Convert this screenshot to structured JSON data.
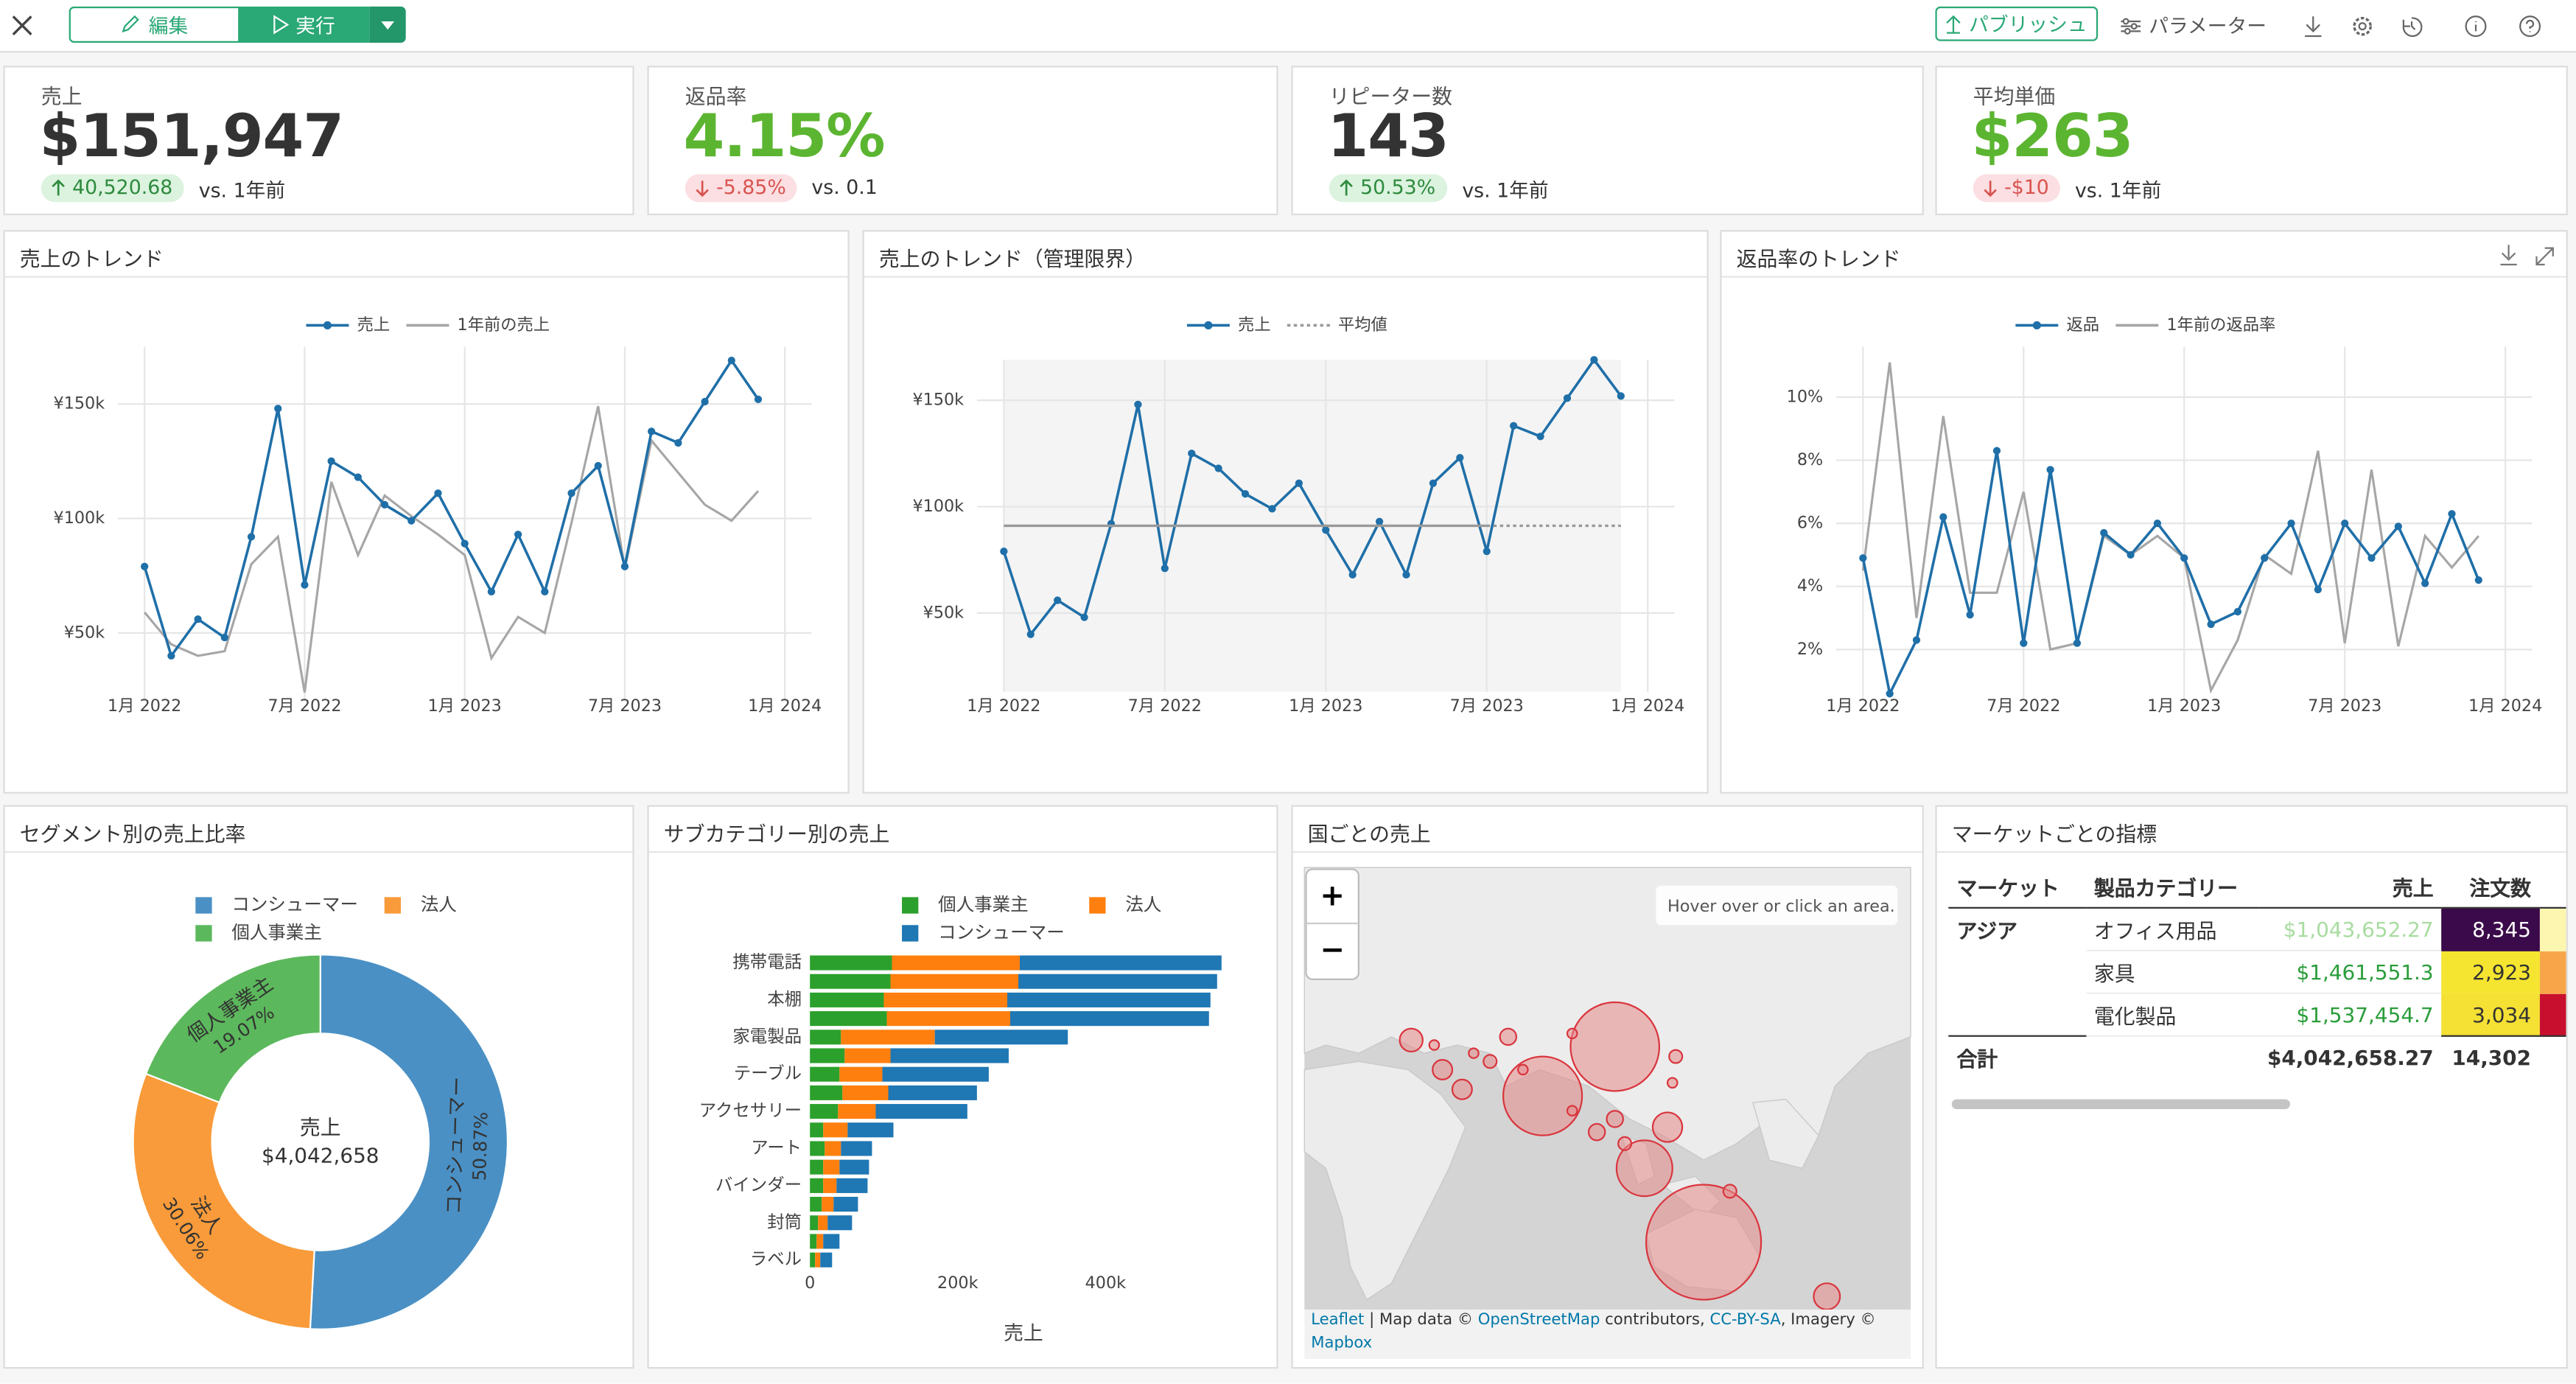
{
  "toolbar": {
    "edit": "編集",
    "run": "実行",
    "publish": "パブリッシュ",
    "parameters": "パラメーター"
  },
  "kpis": [
    {
      "title": "売上",
      "value": "$151,947",
      "change": "40,520.68",
      "direction": "up",
      "comparison": "vs. 1年前",
      "color": "#333333"
    },
    {
      "title": "返品率",
      "value": "4.15%",
      "change": "-5.85%",
      "direction": "down",
      "comparison": "vs. 0.1",
      "color": "#5cb531"
    },
    {
      "title": "リピーター数",
      "value": "143",
      "change": "50.53%",
      "direction": "up",
      "comparison": "vs. 1年前",
      "color": "#333333"
    },
    {
      "title": "平均単価",
      "value": "$263",
      "change": "-$10",
      "direction": "down",
      "comparison": "vs. 1年前",
      "color": "#5cb531"
    }
  ],
  "chart_data": [
    {
      "type": "line",
      "title": "売上のトレンド",
      "x": [
        "2022-01",
        "2022-02",
        "2022-03",
        "2022-04",
        "2022-05",
        "2022-06",
        "2022-07",
        "2022-08",
        "2022-09",
        "2022-10",
        "2022-11",
        "2022-12",
        "2023-01",
        "2023-02",
        "2023-03",
        "2023-04",
        "2023-05",
        "2023-06",
        "2023-07",
        "2023-08",
        "2023-09",
        "2023-10",
        "2023-11",
        "2023-12"
      ],
      "xlim": [
        "2021-12",
        "2024-02"
      ],
      "xticks": [
        {
          "value": "2022-01",
          "label": "1月 2022"
        },
        {
          "value": "2022-07",
          "label": "7月 2022"
        },
        {
          "value": "2023-01",
          "label": "1月 2023"
        },
        {
          "value": "2023-07",
          "label": "7月 2023"
        },
        {
          "value": "2024-01",
          "label": "1月 2024"
        }
      ],
      "ylim": [
        20000,
        175000
      ],
      "yticks": [
        {
          "value": 50000,
          "label": "¥50k"
        },
        {
          "value": 100000,
          "label": "¥100k"
        },
        {
          "value": 150000,
          "label": "¥150k"
        }
      ],
      "grid": true,
      "legend": "top",
      "series": [
        {
          "name": "売上",
          "color": "#1f6fa8",
          "markers": true,
          "values": [
            79000,
            40000,
            56000,
            48000,
            92000,
            148000,
            71000,
            125000,
            118000,
            106000,
            99000,
            111000,
            89000,
            68000,
            93000,
            68000,
            111000,
            123000,
            79000,
            138000,
            133000,
            151000,
            169000,
            152000
          ]
        },
        {
          "name": "1年前の売上",
          "color": "#a6a6a6",
          "markers": false,
          "values": [
            59000,
            45000,
            40000,
            42000,
            80000,
            92000,
            24000,
            116000,
            84000,
            110000,
            101000,
            93000,
            84000,
            39000,
            57000,
            50000,
            98000,
            149000,
            78000,
            134000,
            120000,
            106000,
            99000,
            112000
          ]
        }
      ]
    },
    {
      "type": "line",
      "title": "売上のトレンド（管理限界）",
      "x": [
        "2022-01",
        "2022-02",
        "2022-03",
        "2022-04",
        "2022-05",
        "2022-06",
        "2022-07",
        "2022-08",
        "2022-09",
        "2022-10",
        "2022-11",
        "2022-12",
        "2023-01",
        "2023-02",
        "2023-03",
        "2023-04",
        "2023-05",
        "2023-06",
        "2023-07",
        "2023-08",
        "2023-09",
        "2023-10",
        "2023-11",
        "2023-12"
      ],
      "xlim": [
        "2021-12",
        "2024-02"
      ],
      "xticks": [
        {
          "value": "2022-01",
          "label": "1月 2022"
        },
        {
          "value": "2022-07",
          "label": "7月 2022"
        },
        {
          "value": "2023-01",
          "label": "1月 2023"
        },
        {
          "value": "2023-07",
          "label": "7月 2023"
        },
        {
          "value": "2024-01",
          "label": "1月 2024"
        }
      ],
      "ylim": [
        13000,
        169000
      ],
      "yticks": [
        {
          "value": 50000,
          "label": "¥50k"
        },
        {
          "value": 100000,
          "label": "¥100k"
        },
        {
          "value": 150000,
          "label": "¥150k"
        }
      ],
      "grid": true,
      "legend": "top",
      "plot_background": "#f4f4f4",
      "series": [
        {
          "name": "売上",
          "color": "#1f6fa8",
          "markers": true,
          "values": [
            79000,
            40000,
            56000,
            48000,
            92000,
            148000,
            71000,
            125000,
            118000,
            106000,
            99000,
            111000,
            89000,
            68000,
            93000,
            68000,
            111000,
            123000,
            79000,
            138000,
            133000,
            151000,
            169000,
            152000
          ]
        }
      ],
      "mean_line": {
        "name": "平均値",
        "value": 91000,
        "color": "#999999"
      }
    },
    {
      "type": "line",
      "title": "返品率のトレンド",
      "x": [
        "2022-01",
        "2022-02",
        "2022-03",
        "2022-04",
        "2022-05",
        "2022-06",
        "2022-07",
        "2022-08",
        "2022-09",
        "2022-10",
        "2022-11",
        "2022-12",
        "2023-01",
        "2023-02",
        "2023-03",
        "2023-04",
        "2023-05",
        "2023-06",
        "2023-07",
        "2023-08",
        "2023-09",
        "2023-10",
        "2023-11",
        "2023-12"
      ],
      "xlim": [
        "2021-12",
        "2024-02"
      ],
      "xticks": [
        {
          "value": "2022-01",
          "label": "1月 2022"
        },
        {
          "value": "2022-07",
          "label": "7月 2022"
        },
        {
          "value": "2023-01",
          "label": "1月 2023"
        },
        {
          "value": "2023-07",
          "label": "7月 2023"
        },
        {
          "value": "2024-01",
          "label": "1月 2024"
        }
      ],
      "ylim": [
        0.4,
        11.6
      ],
      "yticks": [
        {
          "value": 2,
          "label": "2%"
        },
        {
          "value": 4,
          "label": "4%"
        },
        {
          "value": 6,
          "label": "6%"
        },
        {
          "value": 8,
          "label": "8%"
        },
        {
          "value": 10,
          "label": "10%"
        }
      ],
      "grid": true,
      "legend": "top",
      "series": [
        {
          "name": "返品",
          "color": "#1f6fa8",
          "markers": true,
          "values": [
            4.9,
            0.6,
            2.3,
            6.2,
            3.1,
            8.3,
            2.2,
            7.7,
            2.2,
            5.7,
            5.0,
            6.0,
            4.9,
            2.8,
            3.2,
            4.9,
            6.0,
            3.9,
            6.0,
            4.9,
            5.9,
            4.1,
            6.3,
            4.2
          ]
        },
        {
          "name": "1年前の返品率",
          "color": "#a6a6a6",
          "markers": false,
          "values": [
            4.5,
            11.1,
            3.0,
            9.4,
            3.8,
            3.8,
            7.0,
            2.0,
            2.2,
            5.6,
            5.0,
            5.6,
            4.9,
            0.7,
            2.3,
            5.0,
            4.4,
            8.3,
            2.2,
            7.7,
            2.1,
            5.6,
            4.6,
            5.6
          ]
        }
      ]
    },
    {
      "type": "pie",
      "title": "セグメント別の売上比率",
      "donut": true,
      "categories": [
        "コンシューマー",
        "法人",
        "個人事業主"
      ],
      "values": [
        50.87,
        30.06,
        19.07
      ],
      "value_labels": [
        "50.87%",
        "30.06%",
        "19.07%"
      ],
      "colors": [
        "#4a90c4",
        "#f99b3a",
        "#5cb85c"
      ],
      "legend": "top",
      "center_label": "売上",
      "center_value": "$4,042,658"
    },
    {
      "type": "bar",
      "orientation": "horizontal",
      "stacked": true,
      "title": "サブカテゴリー別の売上",
      "categories": [
        "携帯電話",
        null,
        "本棚",
        null,
        "家電製品",
        null,
        "テーブル",
        null,
        "アクセサリー",
        null,
        "アート",
        null,
        "バインダー",
        null,
        "封筒",
        null,
        "ラベル"
      ],
      "series": [
        {
          "name": "個人事業主",
          "color": "#2ca02c",
          "values": [
            111000,
            109000,
            100000,
            104000,
            42000,
            47000,
            40000,
            44000,
            38000,
            18000,
            20000,
            18000,
            18000,
            16000,
            11000,
            9000,
            7000
          ]
        },
        {
          "name": "法人",
          "color": "#ff7f0e",
          "values": [
            173000,
            173000,
            167000,
            167000,
            127000,
            62000,
            58000,
            62000,
            51000,
            33000,
            22000,
            22000,
            18000,
            16000,
            13000,
            9000,
            7000
          ]
        },
        {
          "name": "コンシューマー",
          "color": "#1f77b4",
          "values": [
            273000,
            269000,
            275000,
            269000,
            180000,
            160000,
            144000,
            120000,
            124000,
            62000,
            42000,
            40000,
            42000,
            33000,
            33000,
            22000,
            16000
          ]
        }
      ],
      "xlim": [
        0,
        578000
      ],
      "xticks": [
        0,
        {
          "value": 200000,
          "label": "200k"
        },
        {
          "value": 400000,
          "label": "400k"
        }
      ],
      "xlabel": "売上",
      "legend": "top"
    }
  ],
  "map": {
    "title": "国ごとの売上",
    "zoom_in": "+",
    "zoom_out": "−",
    "hint": "Hover over or click an area.",
    "attribution": {
      "leaflet": "Leaflet",
      "text1": " | Map data © ",
      "osm": "OpenStreetMap",
      "text2": " contributors, ",
      "license": "CC-BY-SA",
      "text3": ", Imagery © ",
      "mapbox": "Mapbox"
    }
  },
  "table": {
    "title": "マーケットごとの指標",
    "columns": [
      "マーケット",
      "製品カテゴリー",
      "売上",
      "注文数"
    ],
    "rows": [
      [
        "アジア",
        "オフィス用品",
        "$1,043,652.27",
        "8,345"
      ],
      [
        null,
        "家具",
        "$1,461,551.3",
        "2,923"
      ],
      [
        null,
        "電化製品",
        "$1,537,454.7",
        "3,034"
      ]
    ],
    "total": [
      "合計",
      null,
      "$4,042,658.27",
      "14,302"
    ]
  }
}
